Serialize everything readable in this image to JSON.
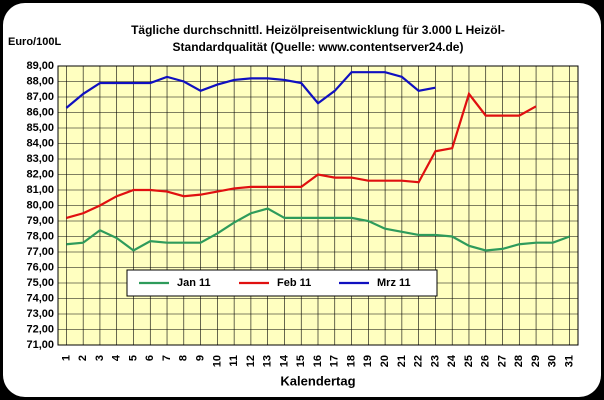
{
  "chart_data": {
    "type": "line",
    "title": "Tägliche durchschnittl. Heizölpreisentwicklung für 3.000 L Heizöl-",
    "subtitle": "Standardqualität (Quelle: www.contentserver24.de)",
    "ylabel": "Euro/100L",
    "xlabel": "Kalendertag",
    "categories": [
      "1",
      "2",
      "3",
      "4",
      "5",
      "6",
      "7",
      "8",
      "9",
      "10",
      "11",
      "12",
      "13",
      "14",
      "15",
      "16",
      "17",
      "18",
      "19",
      "20",
      "21",
      "22",
      "23",
      "24",
      "25",
      "26",
      "27",
      "28",
      "29",
      "30",
      "31"
    ],
    "series": [
      {
        "name": "Jan 11",
        "color": "#2e9b5b",
        "values": [
          77.5,
          77.6,
          78.4,
          77.9,
          77.1,
          77.7,
          77.6,
          77.6,
          77.6,
          78.2,
          78.9,
          79.5,
          79.8,
          79.2,
          79.2,
          79.2,
          79.2,
          79.2,
          79.0,
          78.5,
          78.3,
          78.1,
          78.1,
          78.0,
          77.4,
          77.1,
          77.2,
          77.5,
          77.6,
          77.6,
          78.0
        ]
      },
      {
        "name": "Feb 11",
        "color": "#e01010",
        "values": [
          79.2,
          79.5,
          80.0,
          80.6,
          81.0,
          81.0,
          80.9,
          80.6,
          80.7,
          80.9,
          81.1,
          81.2,
          81.2,
          81.2,
          81.2,
          82.0,
          81.8,
          81.8,
          81.6,
          81.6,
          81.6,
          81.5,
          83.5,
          83.7,
          87.2,
          85.8,
          85.8,
          85.8,
          86.4,
          null,
          null
        ]
      },
      {
        "name": "Mrz 11",
        "color": "#1010c0",
        "values": [
          86.3,
          87.2,
          87.9,
          87.9,
          87.9,
          87.9,
          88.3,
          88.0,
          87.4,
          87.8,
          88.1,
          88.2,
          88.2,
          88.1,
          87.9,
          86.6,
          87.4,
          88.6,
          88.6,
          88.6,
          88.3,
          87.4,
          87.6,
          null,
          null,
          null,
          null,
          null,
          null,
          null,
          null
        ]
      }
    ],
    "ylim": [
      71,
      89
    ],
    "yticks": [
      {
        "value": 71,
        "label": "71,00"
      },
      {
        "value": 72,
        "label": "72,00"
      },
      {
        "value": 73,
        "label": "73,00"
      },
      {
        "value": 74,
        "label": "74,00"
      },
      {
        "value": 75,
        "label": "75,00"
      },
      {
        "value": 76,
        "label": "76,00"
      },
      {
        "value": 77,
        "label": "77,00"
      },
      {
        "value": 78,
        "label": "78,00"
      },
      {
        "value": 79,
        "label": "79,00"
      },
      {
        "value": 80,
        "label": "80,00"
      },
      {
        "value": 81,
        "label": "81,00"
      },
      {
        "value": 82,
        "label": "82,00"
      },
      {
        "value": 83,
        "label": "83,00"
      },
      {
        "value": 84,
        "label": "84,00"
      },
      {
        "value": 85,
        "label": "85,00"
      },
      {
        "value": 86,
        "label": "86,00"
      },
      {
        "value": 87,
        "label": "87,00"
      },
      {
        "value": 88,
        "label": "88,00"
      },
      {
        "value": 89,
        "label": "89,00"
      }
    ],
    "grid": true,
    "legend": "lower center"
  }
}
